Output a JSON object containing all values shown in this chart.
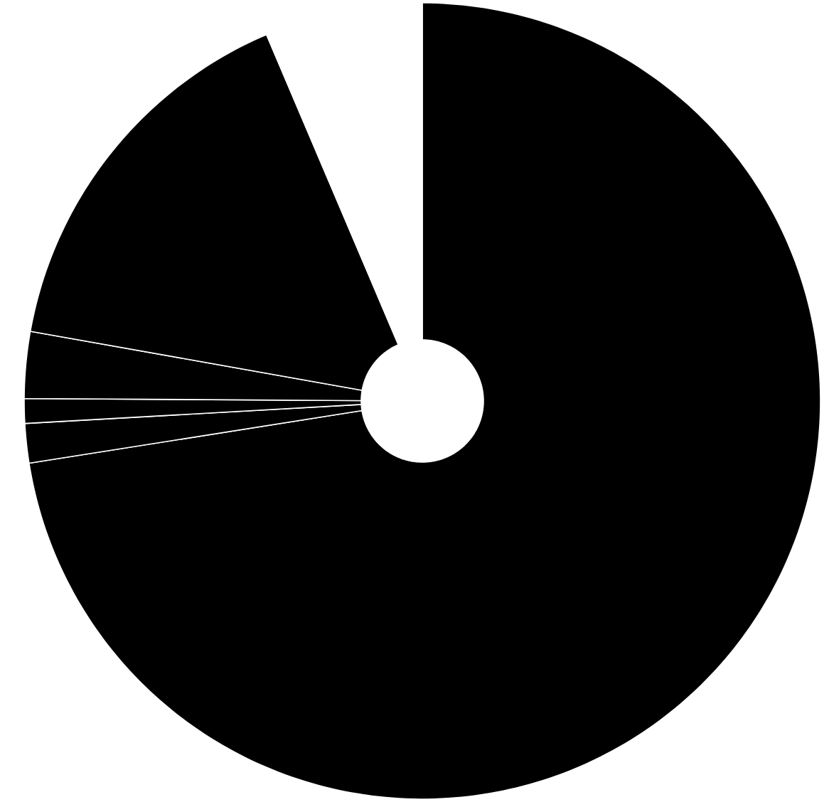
{
  "chart_data": {
    "type": "donut",
    "categories": [
      null,
      null,
      null,
      null,
      null,
      null
    ],
    "values": [
      72.5,
      1.6,
      1.0,
      2.7,
      15.8,
      6.4
    ],
    "colors": [
      "#000000",
      "#000000",
      "#000000",
      "#000000",
      "#000000",
      "#ffffff"
    ]
  }
}
